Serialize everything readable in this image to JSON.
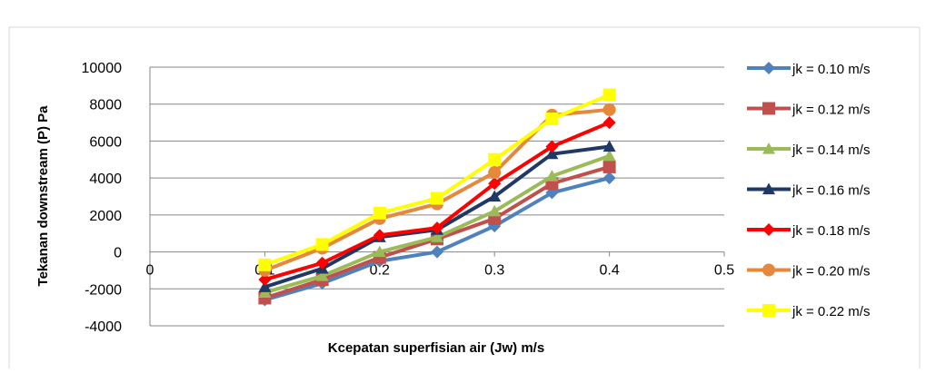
{
  "chart_data": {
    "type": "line",
    "xlabel": "Kcepatan superfisian air (Jw)  m/s",
    "ylabel": "Tekanan downstream (P) Pa",
    "xlim": [
      0,
      0.5
    ],
    "ylim": [
      -4000,
      10000
    ],
    "x_ticks": [
      "0",
      "0.1",
      "0.2",
      "0.3",
      "0.4",
      "0.5"
    ],
    "y_ticks": [
      "10000",
      "8000",
      "6000",
      "4000",
      "2000",
      "0",
      "-2000",
      "-4000"
    ],
    "grid": "horizontal",
    "legend_position": "right",
    "x": [
      0.1,
      0.15,
      0.2,
      0.25,
      0.3,
      0.35,
      0.4
    ],
    "series": [
      {
        "name": "jk = 0.10 m/s",
        "color": "#4f81bd",
        "marker": "diamond",
        "values": [
          -2600,
          -1700,
          -500,
          0,
          1400,
          3200,
          4000
        ]
      },
      {
        "name": "jk = 0.12 m/s",
        "color": "#c0504d",
        "marker": "square",
        "values": [
          -2500,
          -1500,
          -300,
          700,
          1800,
          3700,
          4600
        ]
      },
      {
        "name": "jk = 0.14 m/s",
        "color": "#9bbb59",
        "marker": "triangle",
        "values": [
          -2200,
          -1300,
          0,
          800,
          2200,
          4100,
          5200
        ]
      },
      {
        "name": "jk = 0.16 m/s",
        "color": "#1f3864",
        "marker": "triangle",
        "values": [
          -1900,
          -900,
          800,
          1200,
          3000,
          5300,
          5700
        ]
      },
      {
        "name": "jk = 0.18 m/s",
        "color": "#ff0000",
        "marker": "diamond",
        "values": [
          -1500,
          -600,
          900,
          1300,
          3700,
          5700,
          7000
        ]
      },
      {
        "name": "jk = 0.20 m/s",
        "color": "#e6883c",
        "marker": "circle",
        "values": [
          -1000,
          200,
          1800,
          2600,
          4300,
          7400,
          7700
        ]
      },
      {
        "name": "jk = 0.22 m/s",
        "color": "#ffff00",
        "marker": "square",
        "values": [
          -700,
          400,
          2100,
          2900,
          5000,
          7200,
          8500
        ]
      }
    ]
  }
}
